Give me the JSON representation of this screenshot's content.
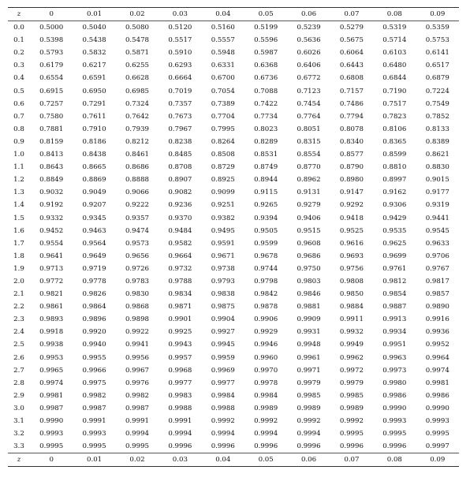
{
  "table": {
    "columns": [
      "z",
      "0",
      "0.01",
      "0.02",
      "0.03",
      "0.04",
      "0.05",
      "0.06",
      "0.07",
      "0.08",
      "0.09"
    ],
    "rows": [
      [
        "0.0",
        "0.5000",
        "0.5040",
        "0.5080",
        "0.5120",
        "0.5160",
        "0.5199",
        "0.5239",
        "0.5279",
        "0.5319",
        "0.5359"
      ],
      [
        "0.1",
        "0.5398",
        "0.5438",
        "0.5478",
        "0.5517",
        "0.5557",
        "0.5596",
        "0.5636",
        "0.5675",
        "0.5714",
        "0.5753"
      ],
      [
        "0.2",
        "0.5793",
        "0.5832",
        "0.5871",
        "0.5910",
        "0.5948",
        "0.5987",
        "0.6026",
        "0.6064",
        "0.6103",
        "0.6141"
      ],
      [
        "0.3",
        "0.6179",
        "0.6217",
        "0.6255",
        "0.6293",
        "0.6331",
        "0.6368",
        "0.6406",
        "0.6443",
        "0.6480",
        "0.6517"
      ],
      [
        "0.4",
        "0.6554",
        "0.6591",
        "0.6628",
        "0.6664",
        "0.6700",
        "0.6736",
        "0.6772",
        "0.6808",
        "0.6844",
        "0.6879"
      ],
      [
        "0.5",
        "0.6915",
        "0.6950",
        "0.6985",
        "0.7019",
        "0.7054",
        "0.7088",
        "0.7123",
        "0.7157",
        "0.7190",
        "0.7224"
      ],
      [
        "0.6",
        "0.7257",
        "0.7291",
        "0.7324",
        "0.7357",
        "0.7389",
        "0.7422",
        "0.7454",
        "0.7486",
        "0.7517",
        "0.7549"
      ],
      [
        "0.7",
        "0.7580",
        "0.7611",
        "0.7642",
        "0.7673",
        "0.7704",
        "0.7734",
        "0.7764",
        "0.7794",
        "0.7823",
        "0.7852"
      ],
      [
        "0.8",
        "0.7881",
        "0.7910",
        "0.7939",
        "0.7967",
        "0.7995",
        "0.8023",
        "0.8051",
        "0.8078",
        "0.8106",
        "0.8133"
      ],
      [
        "0.9",
        "0.8159",
        "0.8186",
        "0.8212",
        "0.8238",
        "0.8264",
        "0.8289",
        "0.8315",
        "0.8340",
        "0.8365",
        "0.8389"
      ],
      [
        "1.0",
        "0.8413",
        "0.8438",
        "0.8461",
        "0.8485",
        "0.8508",
        "0.8531",
        "0.8554",
        "0.8577",
        "0.8599",
        "0.8621"
      ],
      [
        "1.1",
        "0.8643",
        "0.8665",
        "0.8686",
        "0.8708",
        "0.8729",
        "0.8749",
        "0.8770",
        "0.8790",
        "0.8810",
        "0.8830"
      ],
      [
        "1.2",
        "0.8849",
        "0.8869",
        "0.8888",
        "0.8907",
        "0.8925",
        "0.8944",
        "0.8962",
        "0.8980",
        "0.8997",
        "0.9015"
      ],
      [
        "1.3",
        "0.9032",
        "0.9049",
        "0.9066",
        "0.9082",
        "0.9099",
        "0.9115",
        "0.9131",
        "0.9147",
        "0.9162",
        "0.9177"
      ],
      [
        "1.4",
        "0.9192",
        "0.9207",
        "0.9222",
        "0.9236",
        "0.9251",
        "0.9265",
        "0.9279",
        "0.9292",
        "0.9306",
        "0.9319"
      ],
      [
        "1.5",
        "0.9332",
        "0.9345",
        "0.9357",
        "0.9370",
        "0.9382",
        "0.9394",
        "0.9406",
        "0.9418",
        "0.9429",
        "0.9441"
      ],
      [
        "1.6",
        "0.9452",
        "0.9463",
        "0.9474",
        "0.9484",
        "0.9495",
        "0.9505",
        "0.9515",
        "0.9525",
        "0.9535",
        "0.9545"
      ],
      [
        "1.7",
        "0.9554",
        "0.9564",
        "0.9573",
        "0.9582",
        "0.9591",
        "0.9599",
        "0.9608",
        "0.9616",
        "0.9625",
        "0.9633"
      ],
      [
        "1.8",
        "0.9641",
        "0.9649",
        "0.9656",
        "0.9664",
        "0.9671",
        "0.9678",
        "0.9686",
        "0.9693",
        "0.9699",
        "0.9706"
      ],
      [
        "1.9",
        "0.9713",
        "0.9719",
        "0.9726",
        "0.9732",
        "0.9738",
        "0.9744",
        "0.9750",
        "0.9756",
        "0.9761",
        "0.9767"
      ],
      [
        "2.0",
        "0.9772",
        "0.9778",
        "0.9783",
        "0.9788",
        "0.9793",
        "0.9798",
        "0.9803",
        "0.9808",
        "0.9812",
        "0.9817"
      ],
      [
        "2.1",
        "0.9821",
        "0.9826",
        "0.9830",
        "0.9834",
        "0.9838",
        "0.9842",
        "0.9846",
        "0.9850",
        "0.9854",
        "0.9857"
      ],
      [
        "2.2",
        "0.9861",
        "0.9864",
        "0.9868",
        "0.9871",
        "0.9875",
        "0.9878",
        "0.9881",
        "0.9884",
        "0.9887",
        "0.9890"
      ],
      [
        "2.3",
        "0.9893",
        "0.9896",
        "0.9898",
        "0.9901",
        "0.9904",
        "0.9906",
        "0.9909",
        "0.9911",
        "0.9913",
        "0.9916"
      ],
      [
        "2.4",
        "0.9918",
        "0.9920",
        "0.9922",
        "0.9925",
        "0.9927",
        "0.9929",
        "0.9931",
        "0.9932",
        "0.9934",
        "0.9936"
      ],
      [
        "2.5",
        "0.9938",
        "0.9940",
        "0.9941",
        "0.9943",
        "0.9945",
        "0.9946",
        "0.9948",
        "0.9949",
        "0.9951",
        "0.9952"
      ],
      [
        "2.6",
        "0.9953",
        "0.9955",
        "0.9956",
        "0.9957",
        "0.9959",
        "0.9960",
        "0.9961",
        "0.9962",
        "0.9963",
        "0.9964"
      ],
      [
        "2.7",
        "0.9965",
        "0.9966",
        "0.9967",
        "0.9968",
        "0.9969",
        "0.9970",
        "0.9971",
        "0.9972",
        "0.9973",
        "0.9974"
      ],
      [
        "2.8",
        "0.9974",
        "0.9975",
        "0.9976",
        "0.9977",
        "0.9977",
        "0.9978",
        "0.9979",
        "0.9979",
        "0.9980",
        "0.9981"
      ],
      [
        "2.9",
        "0.9981",
        "0.9982",
        "0.9982",
        "0.9983",
        "0.9984",
        "0.9984",
        "0.9985",
        "0.9985",
        "0.9986",
        "0.9986"
      ],
      [
        "3.0",
        "0.9987",
        "0.9987",
        "0.9987",
        "0.9988",
        "0.9988",
        "0.9989",
        "0.9989",
        "0.9989",
        "0.9990",
        "0.9990"
      ],
      [
        "3.1",
        "0.9990",
        "0.9991",
        "0.9991",
        "0.9991",
        "0.9992",
        "0.9992",
        "0.9992",
        "0.9992",
        "0.9993",
        "0.9993"
      ],
      [
        "3.2",
        "0.9993",
        "0.9993",
        "0.9994",
        "0.9994",
        "0.9994",
        "0.9994",
        "0.9994",
        "0.9995",
        "0.9995",
        "0.9995"
      ],
      [
        "3.3",
        "0.9995",
        "0.9995",
        "0.9995",
        "0.9996",
        "0.9996",
        "0.9996",
        "0.9996",
        "0.9996",
        "0.9996",
        "0.9997"
      ]
    ]
  }
}
